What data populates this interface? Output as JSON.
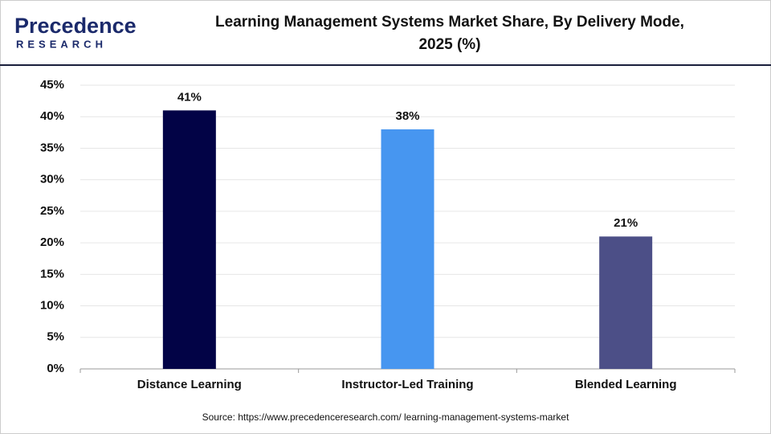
{
  "logo": {
    "name": "Precedence",
    "tagline": "RESEARCH"
  },
  "chart_data": {
    "type": "bar",
    "title": [
      "Learning Management Systems Market Share, By Delivery  Mode,",
      "2025 (%)"
    ],
    "categories": [
      "Distance Learning",
      "Instructor-Led Training",
      "Blended Learning"
    ],
    "values": [
      41,
      38,
      21
    ],
    "value_labels": [
      "41%",
      "38%",
      "21%"
    ],
    "colors": [
      "#020346",
      "#4796f0",
      "#4c4f87"
    ],
    "ylim": [
      0,
      45
    ],
    "yticks": [
      {
        "value": 0,
        "label": "0%"
      },
      {
        "value": 5,
        "label": "5%"
      },
      {
        "value": 10,
        "label": "10%"
      },
      {
        "value": 15,
        "label": "15%"
      },
      {
        "value": 20,
        "label": "20%"
      },
      {
        "value": 25,
        "label": "25%"
      },
      {
        "value": 30,
        "label": "30%"
      },
      {
        "value": 35,
        "label": "35%"
      },
      {
        "value": 40,
        "label": "40%"
      },
      {
        "value": 45,
        "label": "45%"
      }
    ],
    "grid": true,
    "source": "Source: https://www.precedenceresearch.com/ learning-management-systems-market"
  }
}
